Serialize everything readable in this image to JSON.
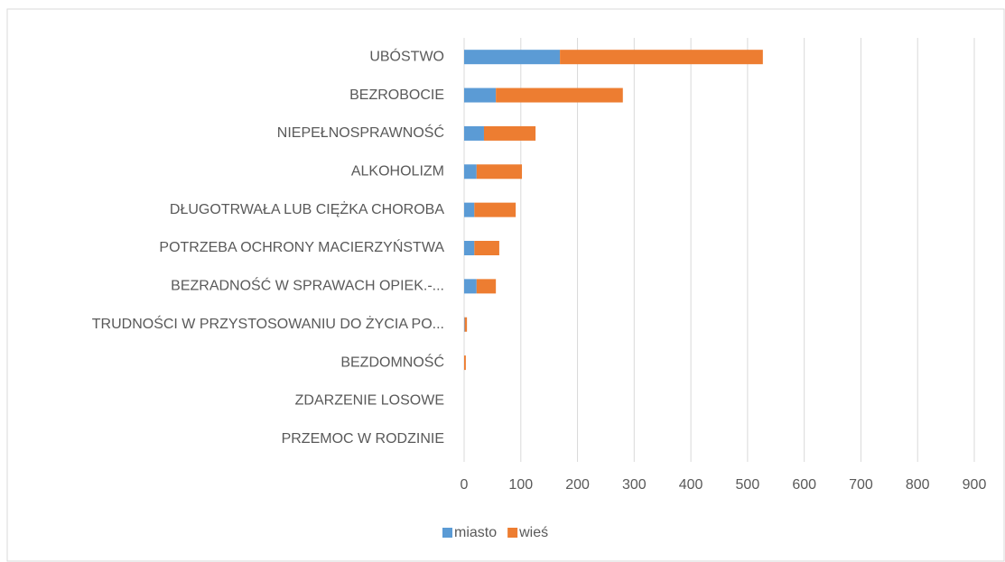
{
  "chart_data": {
    "type": "stacked-barh",
    "categories": [
      "UBÓSTWO",
      "BEZROBOCIE",
      "NIEPEŁNOSPRAWNOŚĆ",
      "ALKOHOLIZM",
      "DŁUGOTRWAŁA LUB CIĘŻKA CHOROBA",
      "POTRZEBA OCHRONY MACIERZYŃSTWA",
      "BEZRADNOŚĆ W SPRAWACH OPIEK.-...",
      "TRUDNOŚCI W PRZYSTOSOWANIU DO ŻYCIA PO...",
      "BEZDOMNOŚĆ",
      "ZDARZENIE LOSOWE",
      "PRZEMOC W RODZINIE"
    ],
    "series": [
      {
        "name": "miasto",
        "color": "#5b9bd5",
        "values": [
          169,
          56,
          35,
          22,
          18,
          18,
          22,
          1,
          0,
          0,
          0
        ]
      },
      {
        "name": "wieś",
        "color": "#ed7d31",
        "values": [
          358,
          224,
          91,
          80,
          73,
          44,
          34,
          4,
          3,
          0,
          0
        ]
      }
    ],
    "xlim": [
      0,
      900
    ],
    "xticks": [
      0,
      100,
      200,
      300,
      400,
      500,
      600,
      700,
      800,
      900
    ],
    "grid": true,
    "legend": "bottom"
  }
}
